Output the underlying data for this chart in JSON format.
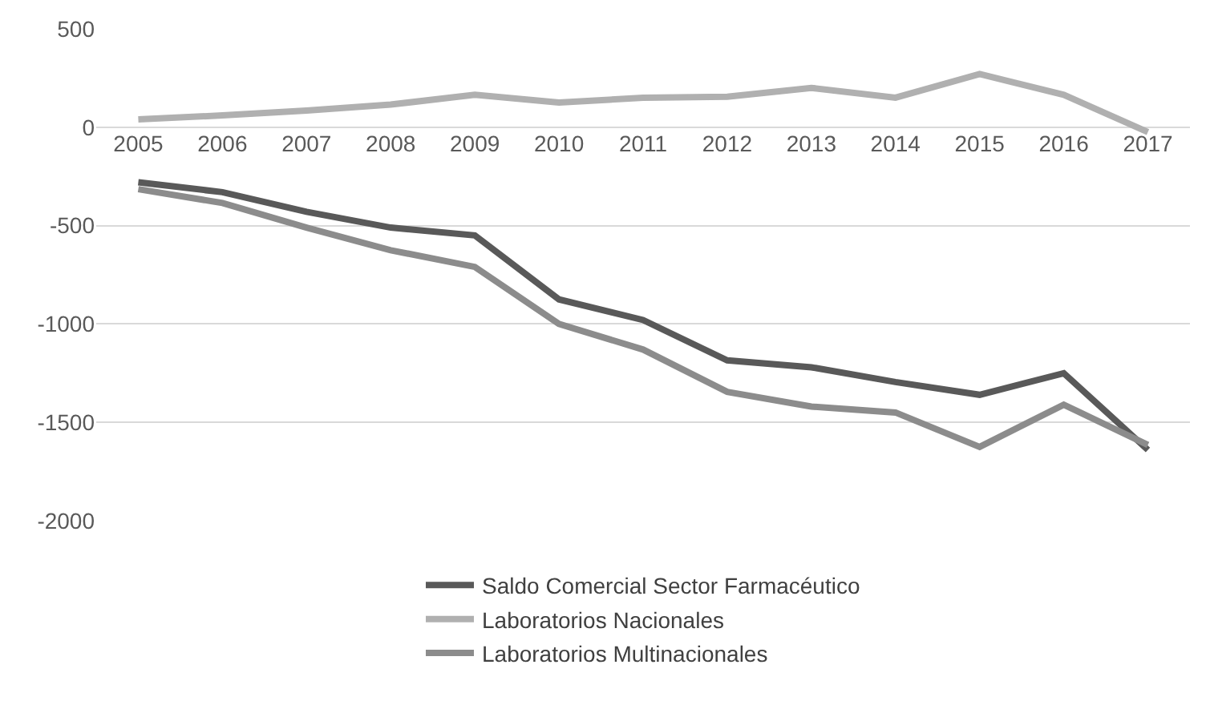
{
  "chart_data": {
    "type": "line",
    "categories": [
      "2005",
      "2006",
      "2007",
      "2008",
      "2009",
      "2010",
      "2011",
      "2012",
      "2013",
      "2014",
      "2015",
      "2016",
      "2017"
    ],
    "series": [
      {
        "name": "Saldo Comercial Sector Farmacéutico",
        "color": "#595959",
        "values": [
          -280,
          -330,
          -430,
          -510,
          -550,
          -875,
          -980,
          -1185,
          -1220,
          -1295,
          -1360,
          -1250,
          -1640
        ]
      },
      {
        "name": "Laboratorios Nacionales",
        "color": "#b0b0b0",
        "values": [
          40,
          60,
          85,
          115,
          165,
          125,
          150,
          155,
          200,
          150,
          270,
          165,
          -25
        ]
      },
      {
        "name": "Laboratorios Multinacionales",
        "color": "#8c8c8c",
        "values": [
          -315,
          -385,
          -510,
          -625,
          -710,
          -1000,
          -1130,
          -1345,
          -1420,
          -1450,
          -1625,
          -1410,
          -1615
        ]
      }
    ],
    "ylim": [
      -2000,
      500
    ],
    "yticks": [
      -2000,
      -1500,
      -1000,
      -500,
      0,
      500
    ],
    "grid": "y",
    "legend": "bottom",
    "marker": "none",
    "line_style": "solid"
  }
}
